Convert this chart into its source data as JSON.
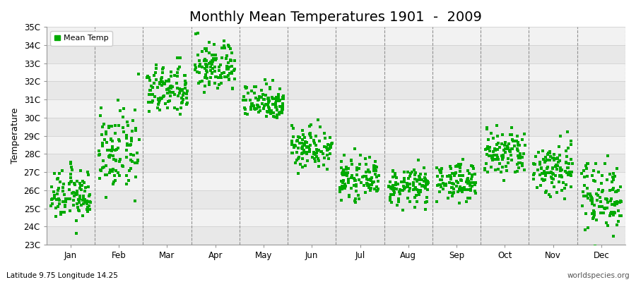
{
  "title": "Monthly Mean Temperatures 1901  -  2009",
  "ylabel": "Temperature",
  "subtitle_left": "Latitude 9.75 Longitude 14.25",
  "subtitle_right": "worldspecies.org",
  "legend_label": "Mean Temp",
  "marker_color": "#00aa00",
  "marker": "s",
  "marker_size": 2.5,
  "ylim": [
    23,
    35
  ],
  "ytick_labels": [
    "23C",
    "24C",
    "25C",
    "26C",
    "27C",
    "28C",
    "29C",
    "30C",
    "31C",
    "32C",
    "33C",
    "34C",
    "35C"
  ],
  "ytick_values": [
    23,
    24,
    25,
    26,
    27,
    28,
    29,
    30,
    31,
    32,
    33,
    34,
    35
  ],
  "months": [
    "Jan",
    "Feb",
    "Mar",
    "Apr",
    "May",
    "Jun",
    "Jul",
    "Aug",
    "Sep",
    "Oct",
    "Nov",
    "Dec"
  ],
  "month_means": [
    25.7,
    28.1,
    31.5,
    32.8,
    30.9,
    28.4,
    26.6,
    26.2,
    26.5,
    28.0,
    27.2,
    25.7
  ],
  "month_stds": [
    0.7,
    1.1,
    0.7,
    0.7,
    0.5,
    0.6,
    0.5,
    0.5,
    0.5,
    0.7,
    0.8,
    1.0
  ],
  "n_years": 109,
  "bg_dark": "#e8e8e8",
  "bg_light": "#f2f2f2",
  "dashed_color": "#888888",
  "hline_color": "#cccccc",
  "title_fontsize": 14,
  "axis_fontsize": 9,
  "tick_fontsize": 8.5,
  "legend_fontsize": 8
}
